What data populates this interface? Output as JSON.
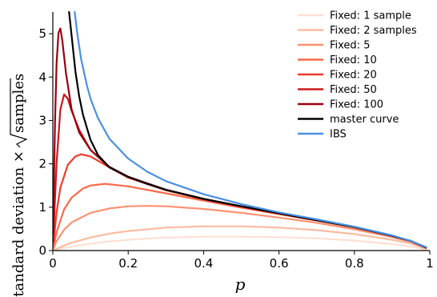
{
  "chart_data": {
    "type": "line",
    "title": "",
    "xlabel": "p",
    "ylabel": "Standard deviation × √samples",
    "ylabel_prefix": "Standard deviation ×",
    "ylabel_radicand": "samples",
    "xlim": [
      0,
      1
    ],
    "ylim": [
      0,
      5.5
    ],
    "x_ticks": [
      0,
      0.2,
      0.4,
      0.6,
      0.8,
      1
    ],
    "x_tick_labels": [
      "0",
      "0.2",
      "0.4",
      "0.6",
      "0.8",
      "1"
    ],
    "y_ticks": [
      0,
      1,
      2,
      3,
      4,
      5
    ],
    "y_tick_labels": [
      "0",
      "1",
      "2",
      "3",
      "4",
      "5"
    ],
    "grid": false,
    "legend_position": "top-right",
    "series": [
      {
        "name": "Fixed: 1 sample",
        "color": "#fde0d2",
        "x": [
          0.005,
          0.02,
          0.05,
          0.1,
          0.15,
          0.2,
          0.3,
          0.4,
          0.5,
          0.6,
          0.7,
          0.8,
          0.9,
          0.95,
          0.99
        ],
        "y": [
          0.01,
          0.04,
          0.09,
          0.16,
          0.21,
          0.25,
          0.3,
          0.32,
          0.32,
          0.31,
          0.28,
          0.23,
          0.15,
          0.09,
          0.02
        ]
      },
      {
        "name": "Fixed: 2 samples",
        "color": "#fcbba1",
        "x": [
          0.005,
          0.02,
          0.05,
          0.1,
          0.15,
          0.2,
          0.3,
          0.4,
          0.5,
          0.6,
          0.7,
          0.8,
          0.9,
          0.95,
          0.99
        ],
        "y": [
          0.02,
          0.08,
          0.18,
          0.3,
          0.39,
          0.45,
          0.53,
          0.56,
          0.56,
          0.53,
          0.47,
          0.38,
          0.25,
          0.16,
          0.04
        ]
      },
      {
        "name": "Fixed: 5",
        "color": "#fc9272",
        "x": [
          0.002,
          0.01,
          0.03,
          0.05,
          0.1,
          0.15,
          0.2,
          0.25,
          0.3,
          0.4,
          0.5,
          0.6,
          0.7,
          0.8,
          0.9,
          0.95,
          0.99
        ],
        "y": [
          0.05,
          0.22,
          0.48,
          0.65,
          0.87,
          0.97,
          1.02,
          1.03,
          1.02,
          0.96,
          0.87,
          0.76,
          0.64,
          0.49,
          0.31,
          0.2,
          0.06
        ]
      },
      {
        "name": "Fixed: 10",
        "color": "#fb6a4a",
        "x": [
          0.002,
          0.01,
          0.03,
          0.05,
          0.08,
          0.1,
          0.14,
          0.2,
          0.3,
          0.4,
          0.5,
          0.6,
          0.7,
          0.8,
          0.9,
          0.95,
          0.99
        ],
        "y": [
          0.1,
          0.42,
          0.95,
          1.22,
          1.43,
          1.5,
          1.54,
          1.48,
          1.32,
          1.15,
          0.99,
          0.84,
          0.69,
          0.53,
          0.34,
          0.22,
          0.07
        ]
      },
      {
        "name": "Fixed: 20",
        "color": "#ef3b2c",
        "x": [
          0.002,
          0.01,
          0.02,
          0.04,
          0.06,
          0.075,
          0.1,
          0.15,
          0.2,
          0.3,
          0.4,
          0.5,
          0.6,
          0.7,
          0.8,
          0.9,
          0.95,
          0.99
        ],
        "y": [
          0.2,
          0.88,
          1.45,
          1.98,
          2.17,
          2.22,
          2.17,
          1.92,
          1.68,
          1.39,
          1.18,
          1.01,
          0.85,
          0.7,
          0.54,
          0.34,
          0.22,
          0.07
        ]
      },
      {
        "name": "Fixed: 50",
        "color": "#cb181d",
        "x": [
          0.001,
          0.005,
          0.01,
          0.02,
          0.03,
          0.04,
          0.05,
          0.07,
          0.1,
          0.15,
          0.2,
          0.3,
          0.4,
          0.5,
          0.6,
          0.7,
          0.8,
          0.9,
          0.95,
          0.99
        ],
        "y": [
          0.2,
          1.05,
          2.02,
          3.25,
          3.6,
          3.5,
          3.22,
          2.78,
          2.32,
          1.92,
          1.7,
          1.4,
          1.19,
          1.02,
          0.86,
          0.7,
          0.54,
          0.34,
          0.22,
          0.07
        ]
      },
      {
        "name": "Fixed: 100",
        "color": "#99000d",
        "x": [
          0.001,
          0.003,
          0.006,
          0.01,
          0.015,
          0.02,
          0.025,
          0.035,
          0.05,
          0.07,
          0.1,
          0.15,
          0.2,
          0.3,
          0.4,
          0.5,
          0.6,
          0.7,
          0.8,
          0.9,
          0.95,
          0.99
        ],
        "y": [
          0.42,
          1.55,
          3.0,
          4.32,
          5.02,
          5.12,
          4.85,
          4.08,
          3.25,
          2.72,
          2.32,
          1.93,
          1.7,
          1.4,
          1.19,
          1.02,
          0.86,
          0.7,
          0.54,
          0.34,
          0.22,
          0.07
        ]
      },
      {
        "name": "master curve",
        "color": "#000000",
        "x": [
          0.043,
          0.05,
          0.06,
          0.07,
          0.08,
          0.1,
          0.12,
          0.15,
          0.2,
          0.25,
          0.3,
          0.4,
          0.5,
          0.6,
          0.7,
          0.8,
          0.9,
          0.95,
          0.99
        ],
        "y": [
          5.5,
          4.95,
          4.12,
          3.55,
          3.13,
          2.55,
          2.2,
          1.92,
          1.7,
          1.54,
          1.4,
          1.19,
          1.02,
          0.86,
          0.7,
          0.54,
          0.34,
          0.22,
          0.07
        ]
      },
      {
        "name": "IBS",
        "color": "#4a90e2",
        "x": [
          0.058,
          0.065,
          0.075,
          0.09,
          0.1,
          0.12,
          0.15,
          0.2,
          0.25,
          0.3,
          0.4,
          0.5,
          0.6,
          0.7,
          0.8,
          0.9,
          0.95,
          0.99
        ],
        "y": [
          5.5,
          5.0,
          4.42,
          3.82,
          3.5,
          3.05,
          2.58,
          2.12,
          1.82,
          1.6,
          1.3,
          1.07,
          0.88,
          0.72,
          0.55,
          0.35,
          0.22,
          0.08
        ]
      }
    ]
  }
}
